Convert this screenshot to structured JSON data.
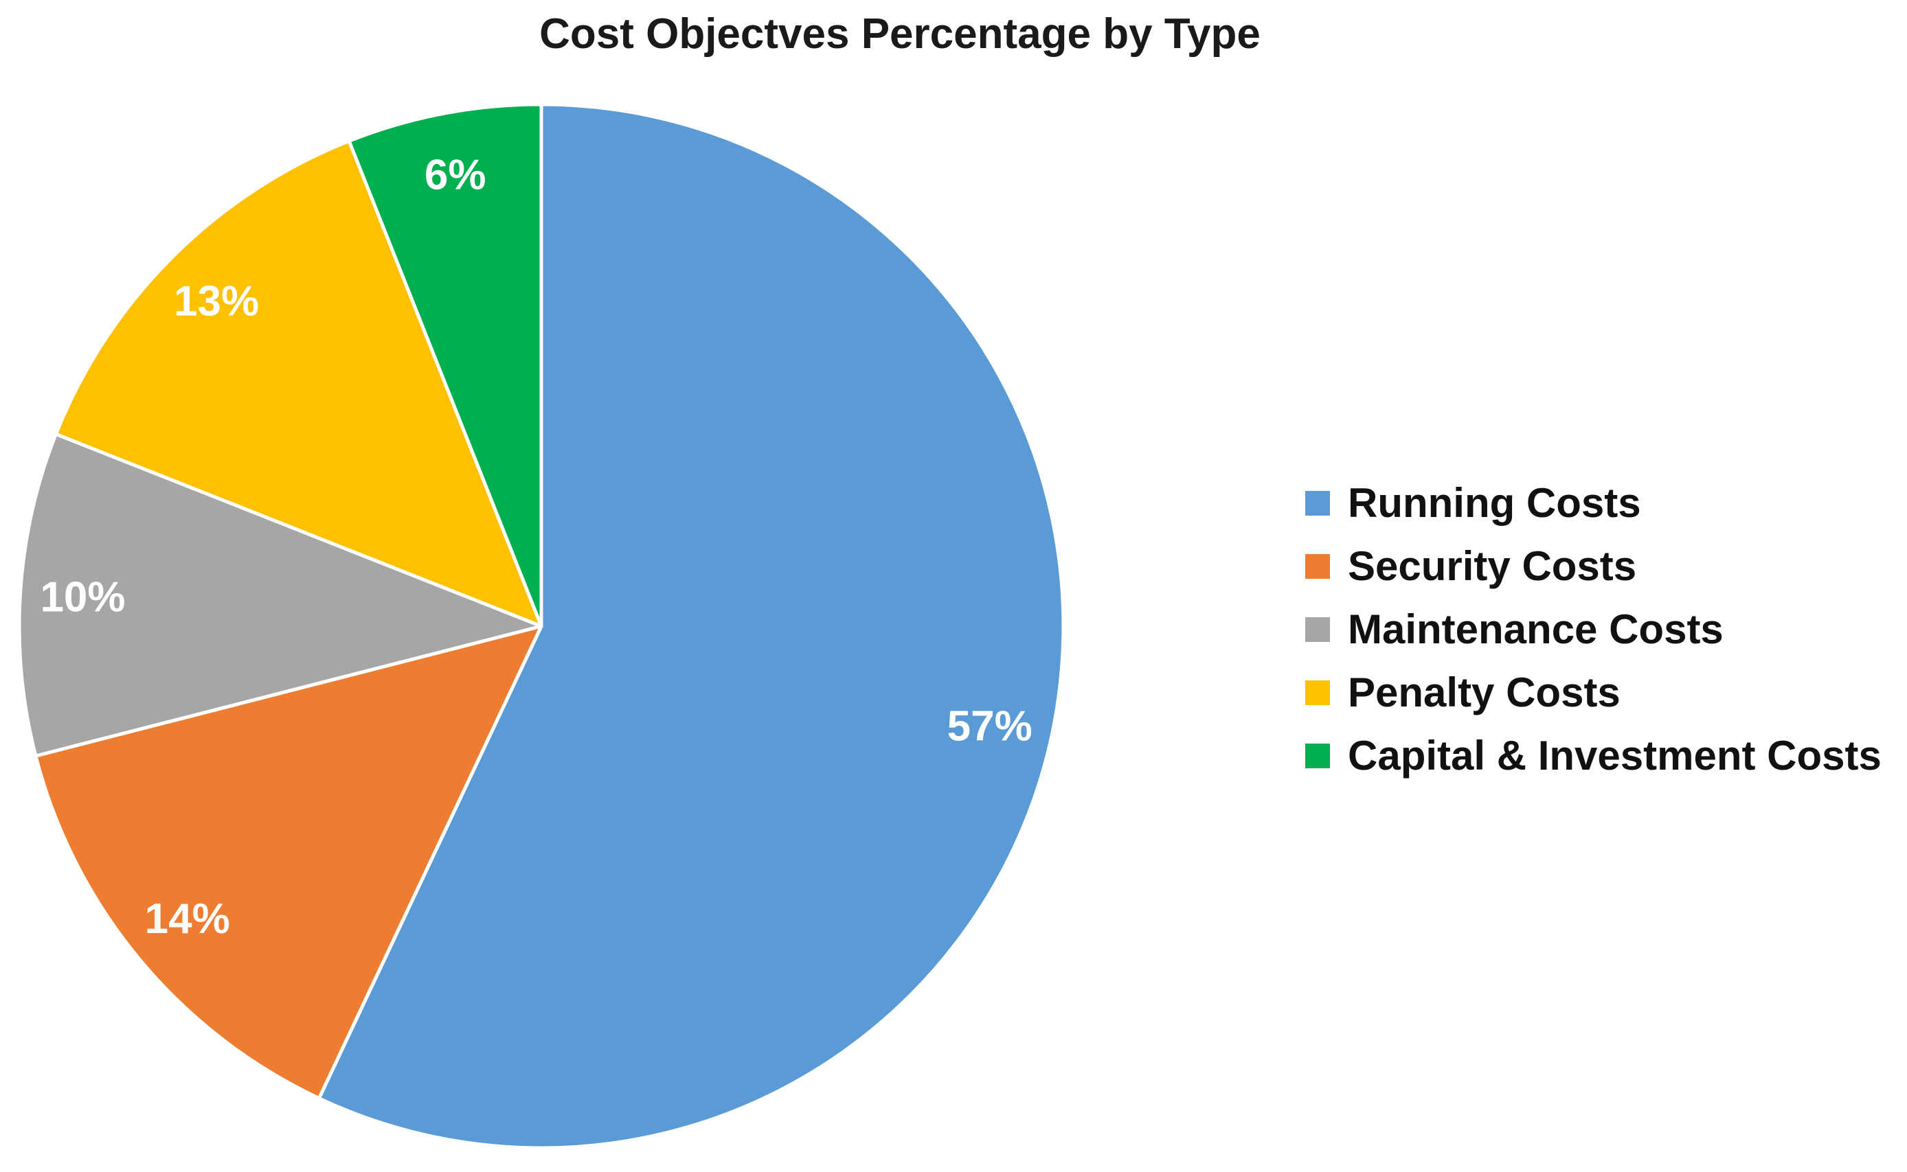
{
  "title": "Cost Objectves Percentage by Type",
  "chart_data": {
    "type": "pie",
    "title": "Cost Objectves Percentage by Type",
    "categories": [
      "Running Costs",
      "Security Costs",
      "Maintenance Costs",
      "Penalty Costs",
      "Capital & Investment Costs"
    ],
    "values": [
      57,
      14,
      10,
      13,
      6
    ],
    "unit": "%",
    "slices": [
      {
        "label": "Running Costs",
        "value": 57,
        "display": "57%",
        "color": "#5B9BD5"
      },
      {
        "label": "Security Costs",
        "value": 14,
        "display": "14%",
        "color": "#ED7D31"
      },
      {
        "label": "Maintenance Costs",
        "value": 10,
        "display": "10%",
        "color": "#A6A6A6"
      },
      {
        "label": "Penalty Costs",
        "value": 13,
        "display": "13%",
        "color": "#FFC000"
      },
      {
        "label": "Capital & Investment Costs",
        "value": 6,
        "display": "6%",
        "color": "#00AF50"
      }
    ],
    "start_angle_deg": 0,
    "direction": "clockwise",
    "slice_border_color": "#FFFFFF",
    "data_label_color": "#FFFFFF",
    "legend_position": "right",
    "grid": false
  }
}
